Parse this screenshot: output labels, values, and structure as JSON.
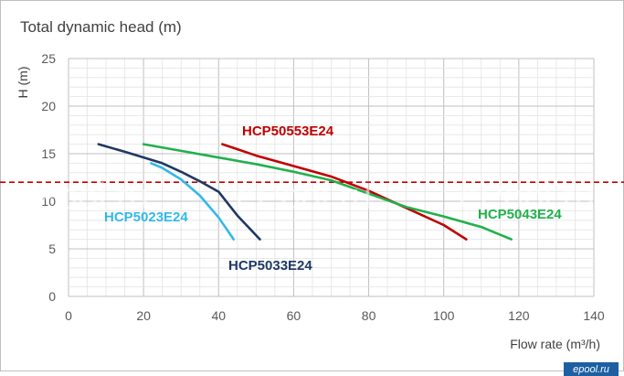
{
  "chart_data": {
    "type": "line",
    "title": "Total dynamic head (m)",
    "ylabel": "H (m)",
    "xlabel": "Flow rate (m³/h)",
    "xlim": [
      0,
      140
    ],
    "ylim": [
      0,
      25
    ],
    "xticks": [
      0,
      20,
      40,
      60,
      80,
      100,
      120,
      140
    ],
    "yticks": [
      0,
      5,
      10,
      15,
      20,
      25
    ],
    "grid": true,
    "reference_line": {
      "y": 12,
      "style": "dashed",
      "color": "#c00000"
    },
    "series": [
      {
        "name": "HCP50553E24",
        "color": "#c00000",
        "x": [
          41,
          50,
          60,
          70,
          80,
          90,
          100,
          106
        ],
        "y": [
          16,
          14.8,
          13.7,
          12.6,
          11.1,
          9.3,
          7.5,
          6
        ]
      },
      {
        "name": "HCP5043E24",
        "color": "#22b04b",
        "x": [
          20,
          30,
          40,
          50,
          60,
          70,
          80,
          90,
          100,
          110,
          118
        ],
        "y": [
          16,
          15.3,
          14.6,
          13.9,
          13.1,
          12.2,
          10.8,
          9.4,
          8.4,
          7.3,
          6
        ]
      },
      {
        "name": "HCP5033E24",
        "color": "#1f3864",
        "x": [
          8,
          15,
          20,
          25,
          30,
          35,
          40,
          45,
          51
        ],
        "y": [
          16,
          15.2,
          14.6,
          14,
          13.1,
          12.1,
          11,
          8.5,
          6
        ]
      },
      {
        "name": "HCP5023E24",
        "color": "#33b8ea",
        "x": [
          22,
          25,
          30,
          35,
          40,
          44
        ],
        "y": [
          14,
          13.5,
          12.3,
          10.6,
          8.3,
          6
        ]
      }
    ]
  },
  "watermarks": [
    "ePool.ru",
    "ePool.ru",
    "ePool.ru"
  ],
  "brand": "epool.ru"
}
